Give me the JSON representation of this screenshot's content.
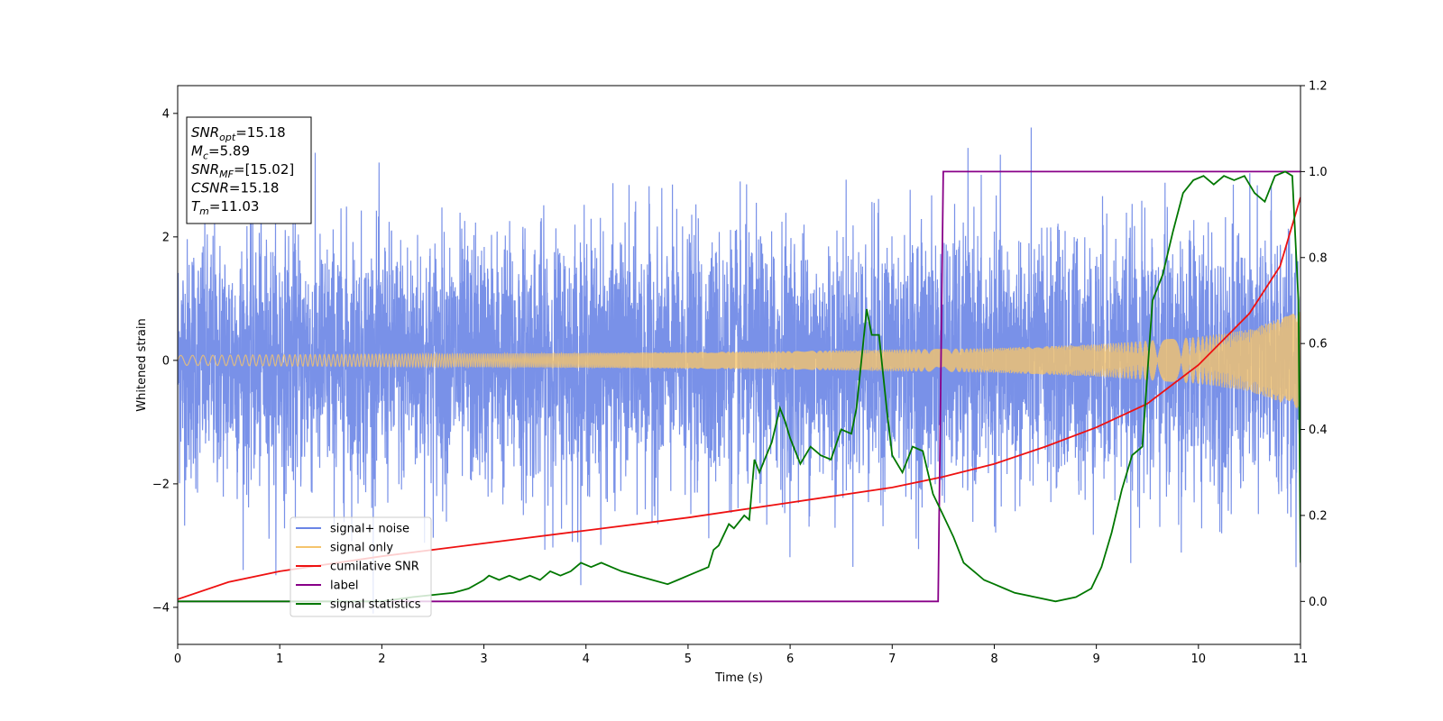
{
  "chart_data": {
    "type": "line",
    "xlabel": "Time (s)",
    "ylabel": "Whitened strain",
    "xlim": [
      0,
      11
    ],
    "ylim": [
      -4.6,
      4.45
    ],
    "y2lim": [
      -0.1,
      1.2
    ],
    "xticks": [
      "0",
      "1",
      "2",
      "3",
      "4",
      "5",
      "6",
      "7",
      "8",
      "9",
      "10",
      "11"
    ],
    "yticks": [
      "−4",
      "−2",
      "0",
      "2",
      "4"
    ],
    "y2ticks": [
      "0.0",
      "0.2",
      "0.4",
      "0.6",
      "0.8",
      "1.0",
      "1.2"
    ],
    "grid": false,
    "legend_position": "lower-left",
    "info_box": [
      {
        "base": "SNR",
        "sub": "opt",
        "value": "=15.18"
      },
      {
        "base": "M",
        "sub": "c",
        "value": "=5.89"
      },
      {
        "base": "SNR",
        "sub": "MF",
        "value": "=[15.02]"
      },
      {
        "base": "CSNR",
        "sub": "",
        "value": "=15.18"
      },
      {
        "base": "T",
        "sub": "m",
        "value": "=11.03"
      }
    ],
    "series": [
      {
        "name": "signal+ noise",
        "color": "#6a85e6",
        "axis": "left",
        "note": "noise-like, approx std 1.0, peaks up to ±4"
      },
      {
        "name": "signal only",
        "color": "#f5c46c",
        "axis": "left",
        "envelope": {
          "t": [
            0,
            2,
            4,
            6,
            8,
            9,
            10,
            10.5,
            11
          ],
          "amp": [
            0.08,
            0.1,
            0.12,
            0.15,
            0.2,
            0.26,
            0.38,
            0.5,
            0.8
          ]
        }
      },
      {
        "name": "cumilative SNR",
        "color": "#ee1111",
        "axis": "right",
        "x": [
          0,
          0.5,
          1,
          2,
          3,
          4,
          5,
          6,
          7,
          7.5,
          8,
          8.5,
          9,
          9.5,
          10,
          10.5,
          10.8,
          11
        ],
        "y": [
          0.005,
          0.045,
          0.07,
          0.105,
          0.135,
          0.165,
          0.195,
          0.23,
          0.265,
          0.29,
          0.32,
          0.36,
          0.405,
          0.46,
          0.55,
          0.67,
          0.78,
          0.94
        ]
      },
      {
        "name": "label",
        "color": "#880088",
        "axis": "right",
        "x": [
          0,
          7.45,
          7.5,
          11
        ],
        "y": [
          0.0,
          0.0,
          1.0,
          1.0
        ]
      },
      {
        "name": "signal statistics",
        "color": "#007700",
        "axis": "right",
        "x": [
          0,
          2.0,
          2.3,
          2.7,
          2.85,
          3.0,
          3.05,
          3.15,
          3.25,
          3.35,
          3.45,
          3.55,
          3.65,
          3.75,
          3.85,
          3.95,
          4.05,
          4.15,
          4.25,
          4.35,
          4.5,
          4.65,
          4.8,
          4.9,
          5.0,
          5.1,
          5.2,
          5.25,
          5.3,
          5.4,
          5.45,
          5.55,
          5.6,
          5.65,
          5.7,
          5.75,
          5.82,
          5.9,
          5.95,
          6.0,
          6.1,
          6.2,
          6.3,
          6.4,
          6.5,
          6.6,
          6.65,
          6.75,
          6.8,
          6.87,
          6.95,
          7.0,
          7.1,
          7.2,
          7.3,
          7.4,
          7.5,
          7.6,
          7.7,
          7.8,
          7.9,
          8.0,
          8.1,
          8.2,
          8.4,
          8.6,
          8.8,
          8.95,
          9.05,
          9.15,
          9.25,
          9.35,
          9.45,
          9.55,
          9.65,
          9.75,
          9.85,
          9.95,
          10.05,
          10.15,
          10.25,
          10.35,
          10.45,
          10.55,
          10.65,
          10.75,
          10.85,
          10.92,
          10.98,
          11
        ],
        "y": [
          0.0,
          0.0,
          0.01,
          0.02,
          0.03,
          0.05,
          0.06,
          0.05,
          0.06,
          0.05,
          0.06,
          0.05,
          0.07,
          0.06,
          0.07,
          0.09,
          0.08,
          0.09,
          0.08,
          0.07,
          0.06,
          0.05,
          0.04,
          0.05,
          0.06,
          0.07,
          0.08,
          0.12,
          0.13,
          0.18,
          0.17,
          0.2,
          0.19,
          0.33,
          0.3,
          0.33,
          0.37,
          0.45,
          0.42,
          0.38,
          0.32,
          0.36,
          0.34,
          0.33,
          0.4,
          0.39,
          0.45,
          0.68,
          0.62,
          0.62,
          0.44,
          0.34,
          0.3,
          0.36,
          0.35,
          0.25,
          0.2,
          0.15,
          0.09,
          0.07,
          0.05,
          0.04,
          0.03,
          0.02,
          0.01,
          0.0,
          0.01,
          0.03,
          0.08,
          0.16,
          0.26,
          0.34,
          0.36,
          0.7,
          0.76,
          0.86,
          0.95,
          0.98,
          0.99,
          0.97,
          0.99,
          0.98,
          0.99,
          0.95,
          0.93,
          0.99,
          1.0,
          0.99,
          0.7,
          0.09
        ]
      }
    ]
  }
}
